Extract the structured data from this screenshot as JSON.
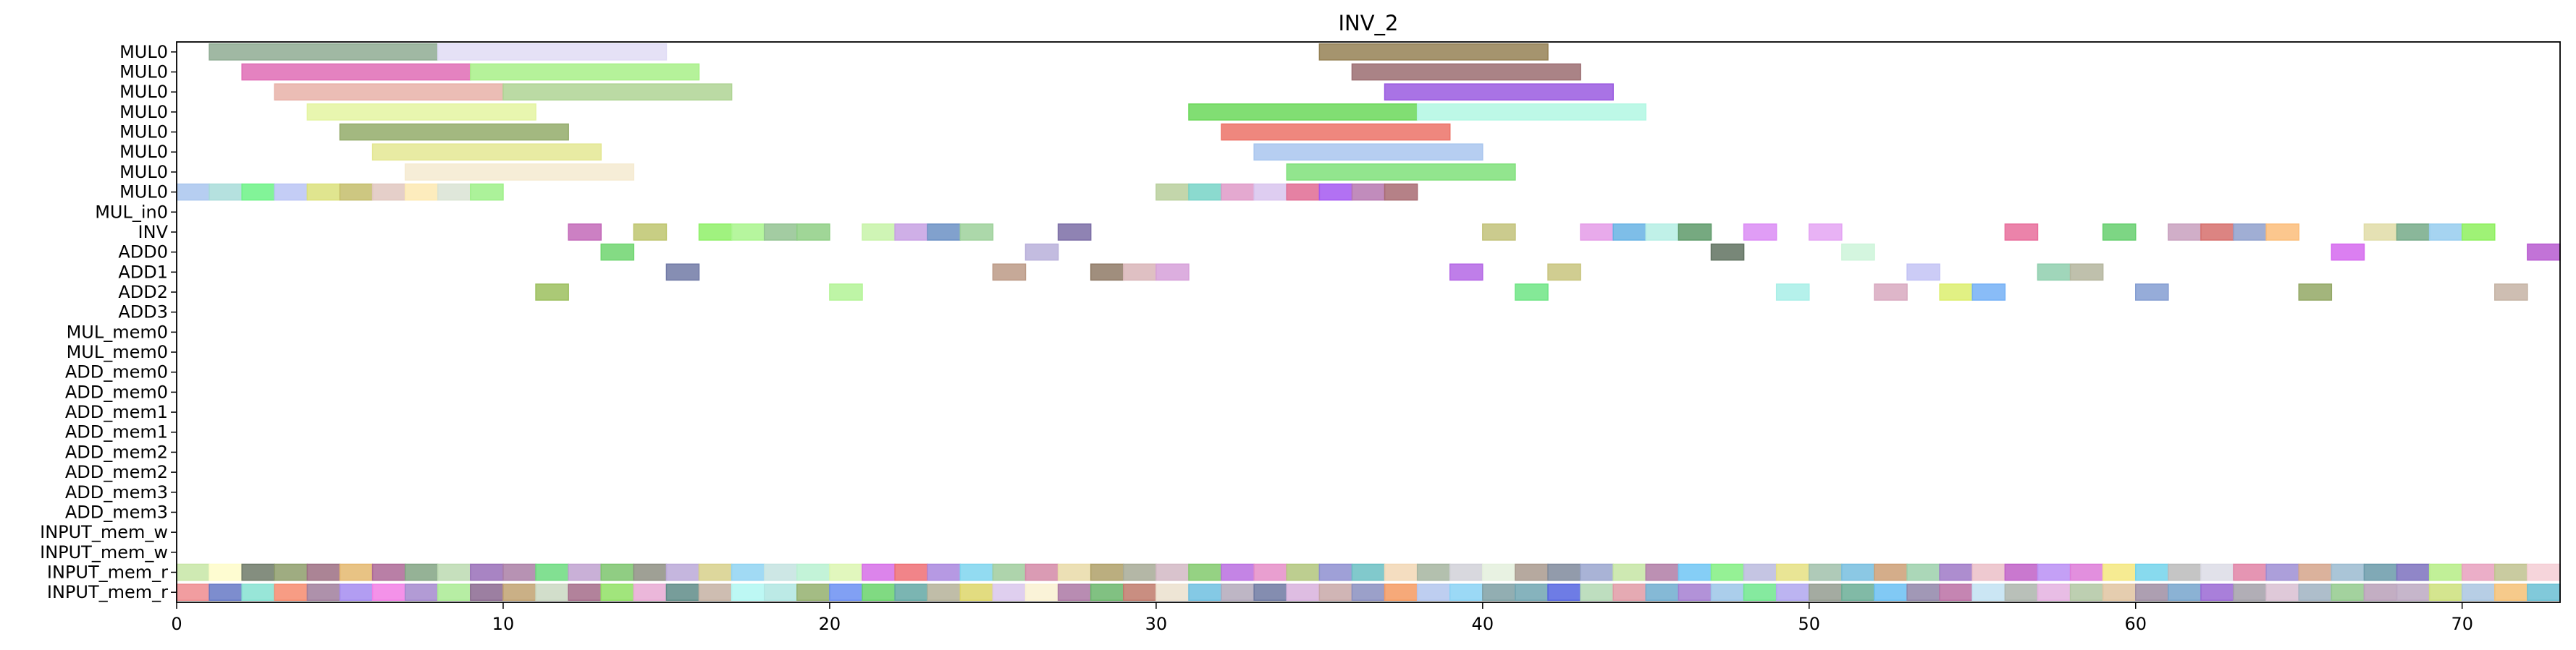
{
  "chart_data": {
    "type": "gantt",
    "title": "INV_2",
    "xlabel": "",
    "ylabel": "",
    "xlim": [
      0,
      73
    ],
    "xticks": [
      0,
      10,
      20,
      30,
      40,
      50,
      60,
      70
    ],
    "grid": false,
    "legend": "none",
    "rows": [
      "MUL0",
      "MUL0",
      "MUL0",
      "MUL0",
      "MUL0",
      "MUL0",
      "MUL0",
      "MUL0",
      "MUL_in0",
      "INV",
      "ADD0",
      "ADD1",
      "ADD2",
      "ADD3",
      "MUL_mem0",
      "MUL_mem0",
      "ADD_mem0",
      "ADD_mem0",
      "ADD_mem1",
      "ADD_mem1",
      "ADD_mem2",
      "ADD_mem2",
      "ADD_mem3",
      "ADD_mem3",
      "INPUT_mem_w",
      "INPUT_mem_w",
      "INPUT_mem_r",
      "INPUT_mem_r"
    ],
    "tasks": [
      {
        "row": 0,
        "start": 1,
        "end": 8,
        "color": "#8fac93"
      },
      {
        "row": 0,
        "start": 8,
        "end": 15,
        "color": "#e0dcf5"
      },
      {
        "row": 0,
        "start": 35,
        "end": 42,
        "color": "#958155"
      },
      {
        "row": 1,
        "start": 2,
        "end": 9,
        "color": "#df6cb5"
      },
      {
        "row": 1,
        "start": 9,
        "end": 16,
        "color": "#a8f088"
      },
      {
        "row": 1,
        "start": 36,
        "end": 43,
        "color": "#9b6d71"
      },
      {
        "row": 2,
        "start": 3,
        "end": 10,
        "color": "#e8b1a8"
      },
      {
        "row": 2,
        "start": 10,
        "end": 17,
        "color": "#afd494"
      },
      {
        "row": 2,
        "start": 37,
        "end": 44,
        "color": "#9a5ae0"
      },
      {
        "row": 3,
        "start": 4,
        "end": 11,
        "color": "#e4f4a1"
      },
      {
        "row": 3,
        "start": 31,
        "end": 38,
        "color": "#6bd85a"
      },
      {
        "row": 3,
        "start": 38,
        "end": 45,
        "color": "#b2f7e3"
      },
      {
        "row": 4,
        "start": 5,
        "end": 12,
        "color": "#93ab6a"
      },
      {
        "row": 4,
        "start": 32,
        "end": 39,
        "color": "#ec7267"
      },
      {
        "row": 5,
        "start": 6,
        "end": 13,
        "color": "#e4e793"
      },
      {
        "row": 5,
        "start": 33,
        "end": 40,
        "color": "#a9c6ee"
      },
      {
        "row": 6,
        "start": 7,
        "end": 14,
        "color": "#f5ead0"
      },
      {
        "row": 6,
        "start": 34,
        "end": 41,
        "color": "#7fe07a"
      },
      {
        "row": 7,
        "start": 0,
        "end": 1,
        "color": "#a9c6ee"
      },
      {
        "row": 7,
        "start": 1,
        "end": 2,
        "color": "#a8dcd9"
      },
      {
        "row": 7,
        "start": 2,
        "end": 3,
        "color": "#6cf286"
      },
      {
        "row": 7,
        "start": 3,
        "end": 4,
        "color": "#bac4f4"
      },
      {
        "row": 7,
        "start": 4,
        "end": 5,
        "color": "#dbe07b"
      },
      {
        "row": 7,
        "start": 5,
        "end": 6,
        "color": "#c4bd6b"
      },
      {
        "row": 7,
        "start": 6,
        "end": 7,
        "color": "#e1c7bf"
      },
      {
        "row": 7,
        "start": 7,
        "end": 8,
        "color": "#fde9b1"
      },
      {
        "row": 7,
        "start": 8,
        "end": 9,
        "color": "#d9e3d3"
      },
      {
        "row": 7,
        "start": 9,
        "end": 10,
        "color": "#9df088"
      },
      {
        "row": 7,
        "start": 30,
        "end": 31,
        "color": "#b8cf9c"
      },
      {
        "row": 7,
        "start": 31,
        "end": 32,
        "color": "#77d3c7"
      },
      {
        "row": 7,
        "start": 32,
        "end": 33,
        "color": "#df9ac8"
      },
      {
        "row": 7,
        "start": 33,
        "end": 34,
        "color": "#d8c4ee"
      },
      {
        "row": 7,
        "start": 34,
        "end": 35,
        "color": "#e06b93"
      },
      {
        "row": 7,
        "start": 35,
        "end": 36,
        "color": "#a458f1"
      },
      {
        "row": 7,
        "start": 36,
        "end": 37,
        "color": "#b678b0"
      },
      {
        "row": 7,
        "start": 37,
        "end": 38,
        "color": "#a86b72"
      },
      {
        "row": 9,
        "start": 12,
        "end": 13,
        "color": "#c36ab9"
      },
      {
        "row": 9,
        "start": 14,
        "end": 15,
        "color": "#bec56e"
      },
      {
        "row": 9,
        "start": 16,
        "end": 17,
        "color": "#8ff068"
      },
      {
        "row": 9,
        "start": 17,
        "end": 18,
        "color": "#a9f58d"
      },
      {
        "row": 9,
        "start": 18,
        "end": 19,
        "color": "#93c392"
      },
      {
        "row": 9,
        "start": 19,
        "end": 20,
        "color": "#8fcf85"
      },
      {
        "row": 9,
        "start": 21,
        "end": 22,
        "color": "#c7f3a8"
      },
      {
        "row": 9,
        "start": 22,
        "end": 23,
        "color": "#c7a1e3"
      },
      {
        "row": 9,
        "start": 23,
        "end": 24,
        "color": "#6b90c4"
      },
      {
        "row": 9,
        "start": 24,
        "end": 25,
        "color": "#9ed19b"
      },
      {
        "row": 9,
        "start": 27,
        "end": 28,
        "color": "#7b6da6"
      },
      {
        "row": 9,
        "start": 40,
        "end": 41,
        "color": "#c2c27a"
      },
      {
        "row": 9,
        "start": 43,
        "end": 44,
        "color": "#e49be7"
      },
      {
        "row": 9,
        "start": 44,
        "end": 45,
        "color": "#67b3e4"
      },
      {
        "row": 9,
        "start": 45,
        "end": 46,
        "color": "#b5eee4"
      },
      {
        "row": 9,
        "start": 46,
        "end": 47,
        "color": "#5e9a6a"
      },
      {
        "row": 9,
        "start": 48,
        "end": 49,
        "color": "#db8cf5"
      },
      {
        "row": 9,
        "start": 50,
        "end": 51,
        "color": "#e4a4f3"
      },
      {
        "row": 9,
        "start": 56,
        "end": 57,
        "color": "#e86d9b"
      },
      {
        "row": 9,
        "start": 59,
        "end": 60,
        "color": "#66cf6e"
      },
      {
        "row": 9,
        "start": 61,
        "end": 62,
        "color": "#c8a0be"
      },
      {
        "row": 9,
        "start": 62,
        "end": 63,
        "color": "#d66f6c"
      },
      {
        "row": 9,
        "start": 63,
        "end": 64,
        "color": "#8fa0cc"
      },
      {
        "row": 9,
        "start": 64,
        "end": 65,
        "color": "#fbbd7a"
      },
      {
        "row": 9,
        "start": 67,
        "end": 68,
        "color": "#e0dca7"
      },
      {
        "row": 9,
        "start": 68,
        "end": 69,
        "color": "#75aa88"
      },
      {
        "row": 9,
        "start": 69,
        "end": 70,
        "color": "#97cdef"
      },
      {
        "row": 9,
        "start": 70,
        "end": 71,
        "color": "#8ef05e"
      },
      {
        "row": 10,
        "start": 13,
        "end": 14,
        "color": "#6ed56f"
      },
      {
        "row": 10,
        "start": 26,
        "end": 27,
        "color": "#b9b0da"
      },
      {
        "row": 10,
        "start": 47,
        "end": 48,
        "color": "#607260"
      },
      {
        "row": 10,
        "start": 51,
        "end": 52,
        "color": "#cdf4d9"
      },
      {
        "row": 10,
        "start": 66,
        "end": 67,
        "color": "#d568ee"
      },
      {
        "row": 10,
        "start": 72,
        "end": 73,
        "color": "#b75ad0"
      },
      {
        "row": 11,
        "start": 15,
        "end": 16,
        "color": "#717aa6"
      },
      {
        "row": 11,
        "start": 25,
        "end": 26,
        "color": "#bc9a86"
      },
      {
        "row": 11,
        "start": 28,
        "end": 29,
        "color": "#8f7a66"
      },
      {
        "row": 11,
        "start": 29,
        "end": 30,
        "color": "#d9b5b8"
      },
      {
        "row": 11,
        "start": 30,
        "end": 31,
        "color": "#d6a0d9"
      },
      {
        "row": 11,
        "start": 39,
        "end": 40,
        "color": "#b467e5"
      },
      {
        "row": 11,
        "start": 42,
        "end": 43,
        "color": "#c8c47e"
      },
      {
        "row": 11,
        "start": 53,
        "end": 54,
        "color": "#c3c3f4"
      },
      {
        "row": 11,
        "start": 57,
        "end": 58,
        "color": "#8fcfae"
      },
      {
        "row": 11,
        "start": 58,
        "end": 59,
        "color": "#b4b59d"
      },
      {
        "row": 12,
        "start": 11,
        "end": 12,
        "color": "#9cbf5e"
      },
      {
        "row": 12,
        "start": 20,
        "end": 21,
        "color": "#b3f396"
      },
      {
        "row": 12,
        "start": 41,
        "end": 42,
        "color": "#6fe585"
      },
      {
        "row": 12,
        "start": 49,
        "end": 50,
        "color": "#a8efe7"
      },
      {
        "row": 12,
        "start": 52,
        "end": 53,
        "color": "#d8a9c0"
      },
      {
        "row": 12,
        "start": 54,
        "end": 55,
        "color": "#dcee6e"
      },
      {
        "row": 12,
        "start": 55,
        "end": 56,
        "color": "#74b0f6"
      },
      {
        "row": 12,
        "start": 60,
        "end": 61,
        "color": "#849dd2"
      },
      {
        "row": 12,
        "start": 65,
        "end": 66,
        "color": "#93a865"
      },
      {
        "row": 12,
        "start": 71,
        "end": 72,
        "color": "#c5b3a4"
      }
    ],
    "mem_rows": [
      {
        "row": 26,
        "colors": [
          "#c7e6a6",
          "#fefcc9",
          "#6e7a68",
          "#8e9e6b",
          "#9c6f83",
          "#e4b86e",
          "#ad6996",
          "#83a484",
          "#bcdab1",
          "#996fb8",
          "#aa7fa6",
          "#6cdb7f",
          "#c0a2d0",
          "#7dc46d",
          "#8e8f83",
          "#bba9d8",
          "#d7d08b",
          "#91d4f2",
          "#c4e3e1",
          "#b9f1d1",
          "#dcf6b1",
          "#d66ee7",
          "#ee6f74",
          "#a987de",
          "#7fd5ee",
          "#a0cc9e",
          "#d48aa7",
          "#e9dba8",
          "#afa068",
          "#a7aa96",
          "#d2b9c4",
          "#83ca6d",
          "#ba6fe1",
          "#e58ec8",
          "#b2c67d",
          "#8e8fd0",
          "#6bbfc3",
          "#f2d7b5",
          "#a6b5a0",
          "#d1d1d8",
          "#e4f0dd",
          "#a99a8e",
          "#7f8a9c",
          "#9aa6cf",
          "#c5e5a4",
          "#b07ca6",
          "#70c6f4",
          "#82ee83",
          "#bbbbde",
          "#e5e082",
          "#a1c1ab",
          "#77bedf",
          "#cd9f76",
          "#9cd0ab",
          "#9f79c7",
          "#ebbfc8",
          "#bf60c7",
          "#ba8ff5",
          "#dd7bd8",
          "#f4e87f",
          "#73d3eb",
          "#bbbbbb",
          "#dcdce6",
          "#e082a6",
          "#9e8ed4",
          "#d5a48b",
          "#9bbbd0",
          "#6a9aa9",
          "#7c71be",
          "#b6ed86",
          "#e7a0be",
          "#c0c28f",
          "#f5ced5"
        ]
      },
      {
        "row": 27,
        "colors": [
          "#ee8c8f",
          "#6679c6",
          "#86e2d1",
          "#f68b6e",
          "#a07e9c",
          "#a58cf0",
          "#f27fe5",
          "#a489ce",
          "#aaeb94",
          "#8b6990",
          "#c1a271",
          "#cad8c2",
          "#a56c8a",
          "#91e165",
          "#e8aad3",
          "#5f8c88",
          "#c6b2a3",
          "#b2f7f2",
          "#b0e6e2",
          "#94b06e",
          "#6b8ff2",
          "#6ad46c",
          "#64a8a5",
          "#b5b299",
          "#ddd66a",
          "#d9c7ec",
          "#f9f1d1",
          "#ac78a4",
          "#6bb66c",
          "#bf7a6b",
          "#ebe0ce",
          "#6fbfe0",
          "#b3a9bb",
          "#6e79a2",
          "#d8b2dd",
          "#c8a8a8",
          "#8a8fc0",
          "#f59a62",
          "#b3c5ed",
          "#8ad2f4",
          "#7fa0a5",
          "#71a6b2",
          "#5565e0",
          "#b3d8b4",
          "#e19ba6",
          "#70adcf",
          "#a47fd1",
          "#9cc5e8",
          "#70e68e",
          "#b0a7ef",
          "#949c90",
          "#6bae96",
          "#6bc0f3",
          "#9186a9",
          "#bb70a5",
          "#c2e2f2",
          "#adb5ad",
          "#e4b1e0",
          "#b2c7a3",
          "#e1c4a1",
          "#9f8ea3",
          "#77a4cc",
          "#9a69d4",
          "#a3a0a9",
          "#d9c0d2",
          "#a0b3c2",
          "#93ca8d",
          "#b8a0b9",
          "#bca9c2",
          "#cde07b",
          "#aac6e0",
          "#f5c177",
          "#6bc0d3"
        ]
      }
    ]
  }
}
